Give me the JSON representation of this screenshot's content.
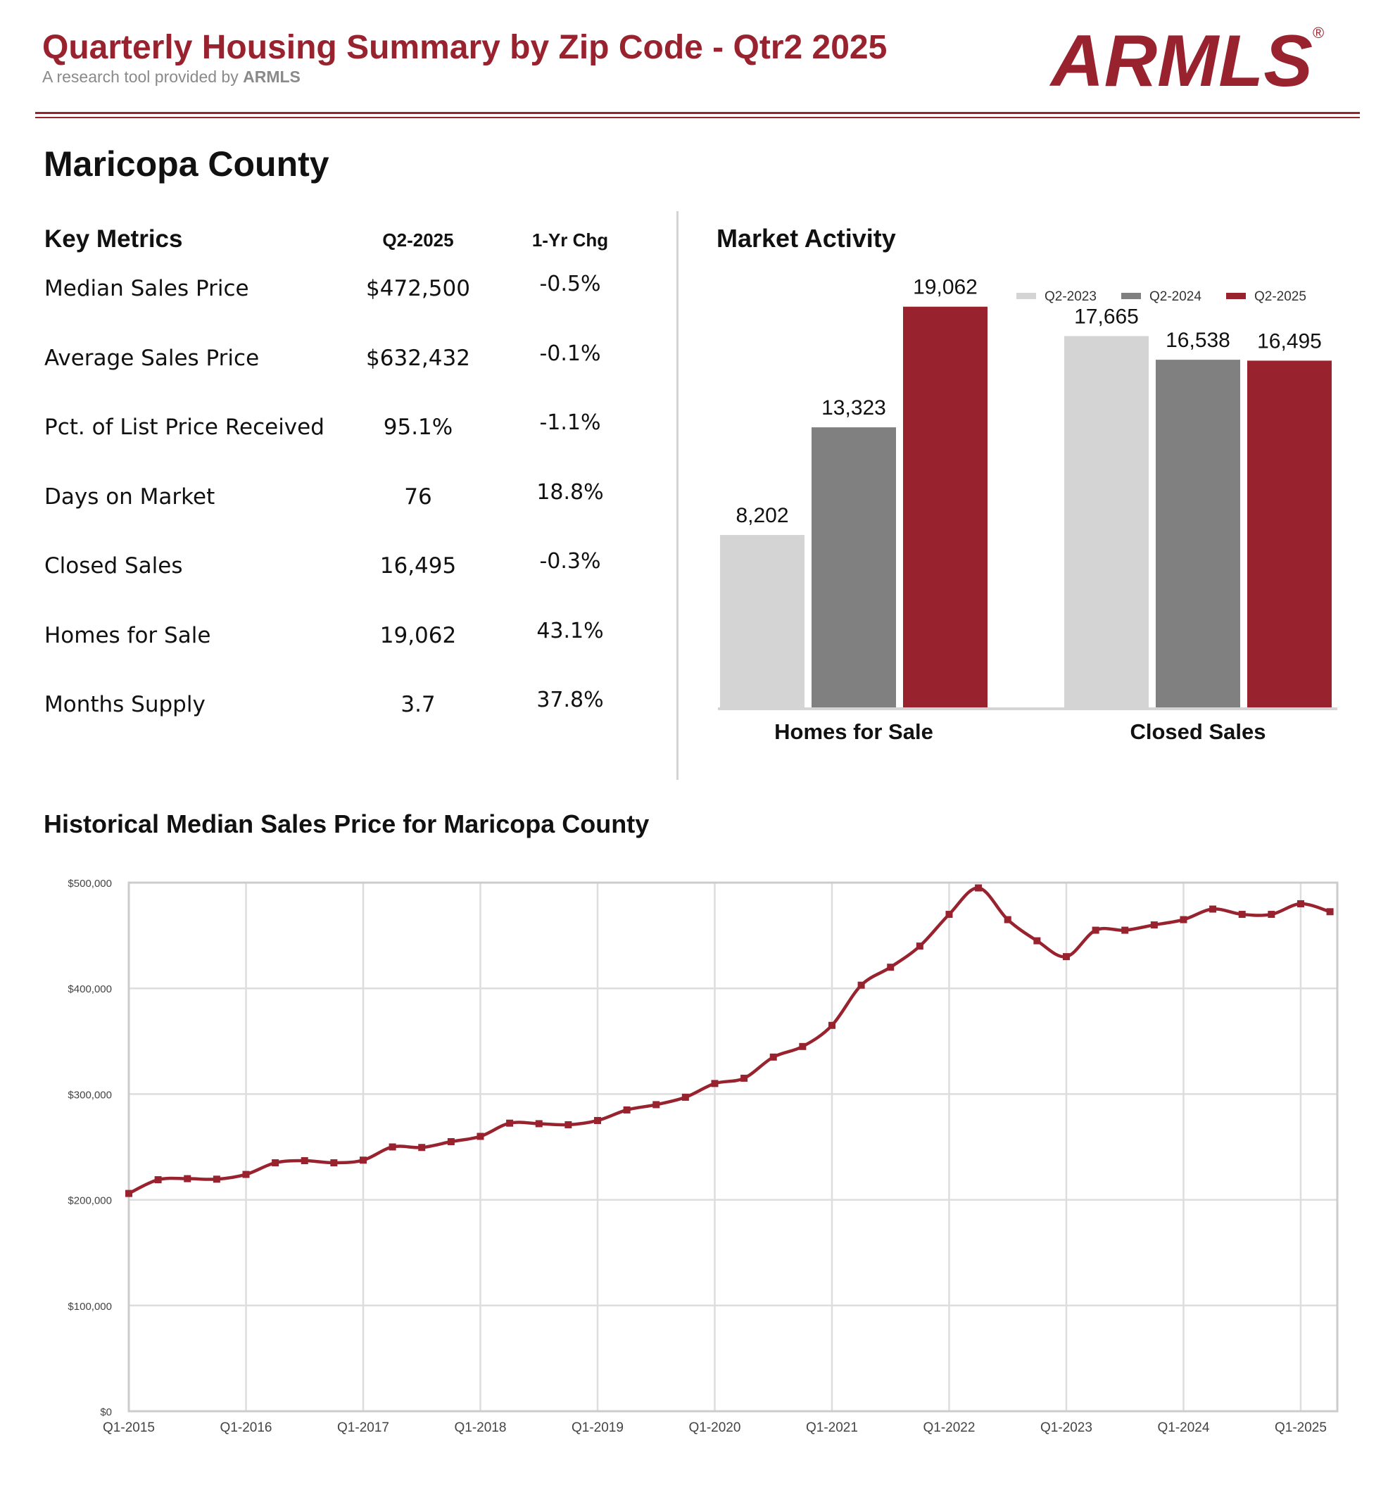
{
  "header": {
    "title": "Quarterly Housing Summary by Zip Code - Qtr2 2025",
    "subtitle_prefix": "A research tool provided by ",
    "subtitle_brand": "ARMLS",
    "logo_text": "ARMLS",
    "registered_mark": "®"
  },
  "county": "Maricopa County",
  "key_metrics": {
    "heading": "Key Metrics",
    "col_value": "Q2-2025",
    "col_change": "1-Yr Chg",
    "rows": [
      {
        "label": "Median Sales Price",
        "value": "$472,500",
        "change": "-0.5%"
      },
      {
        "label": "Average Sales Price",
        "value": "$632,432",
        "change": "-0.1%"
      },
      {
        "label": "Pct. of List Price Received",
        "value": "95.1%",
        "change": "-1.1%"
      },
      {
        "label": "Days on Market",
        "value": "76",
        "change": "18.8%"
      },
      {
        "label": "Closed Sales",
        "value": "16,495",
        "change": "-0.3%"
      },
      {
        "label": "Homes for Sale",
        "value": "19,062",
        "change": "43.1%"
      },
      {
        "label": "Months Supply",
        "value": "3.7",
        "change": "37.8%"
      }
    ]
  },
  "colors": {
    "brand": "#99222f",
    "q2_2023": "#d4d4d4",
    "q2_2024": "#808080",
    "q2_2025": "#99222f",
    "grid": "#dddddd",
    "axis": "#cccccc"
  },
  "chart_data": [
    {
      "type": "bar",
      "title": "Market Activity",
      "categories": [
        "Homes for Sale",
        "Closed Sales"
      ],
      "series": [
        {
          "name": "Q2-2023",
          "values": [
            8202,
            17665
          ],
          "labels": [
            "8,202",
            "17,665"
          ]
        },
        {
          "name": "Q2-2024",
          "values": [
            13323,
            16538
          ],
          "labels": [
            "13,323",
            "16,538"
          ]
        },
        {
          "name": "Q2-2025",
          "values": [
            19062,
            16495
          ],
          "labels": [
            "19,062",
            "16,495"
          ]
        }
      ],
      "ylim": [
        0,
        21000
      ],
      "legend": "top-right"
    },
    {
      "type": "line",
      "title": "Historical Median Sales Price for Maricopa County",
      "series_name": "Median Sales Price",
      "x_ticks": [
        "Q1-2015",
        "Q1-2016",
        "Q1-2017",
        "Q1-2018",
        "Q1-2019",
        "Q1-2020",
        "Q1-2021",
        "Q1-2022",
        "Q1-2023",
        "Q1-2024",
        "Q1-2025"
      ],
      "y_ticks": [
        0,
        100000,
        200000,
        300000,
        400000,
        500000
      ],
      "y_tick_labels": [
        "$0",
        "$100,000",
        "$200,000",
        "$300,000",
        "$400,000",
        "$500,000"
      ],
      "ylim": [
        0,
        500000
      ],
      "x_start": "Q1-2015",
      "values": [
        206000,
        219000,
        220000,
        219500,
        224000,
        235000,
        237000,
        235000,
        237500,
        250000,
        249500,
        255000,
        260000,
        272500,
        272000,
        271000,
        275000,
        285000,
        290000,
        297000,
        310000,
        315000,
        335000,
        345000,
        365000,
        403000,
        420000,
        440000,
        470000,
        495000,
        465000,
        445000,
        430000,
        455000,
        455000,
        460000,
        465000,
        475000,
        470000,
        470000,
        480000,
        472500
      ],
      "grid": true
    }
  ]
}
